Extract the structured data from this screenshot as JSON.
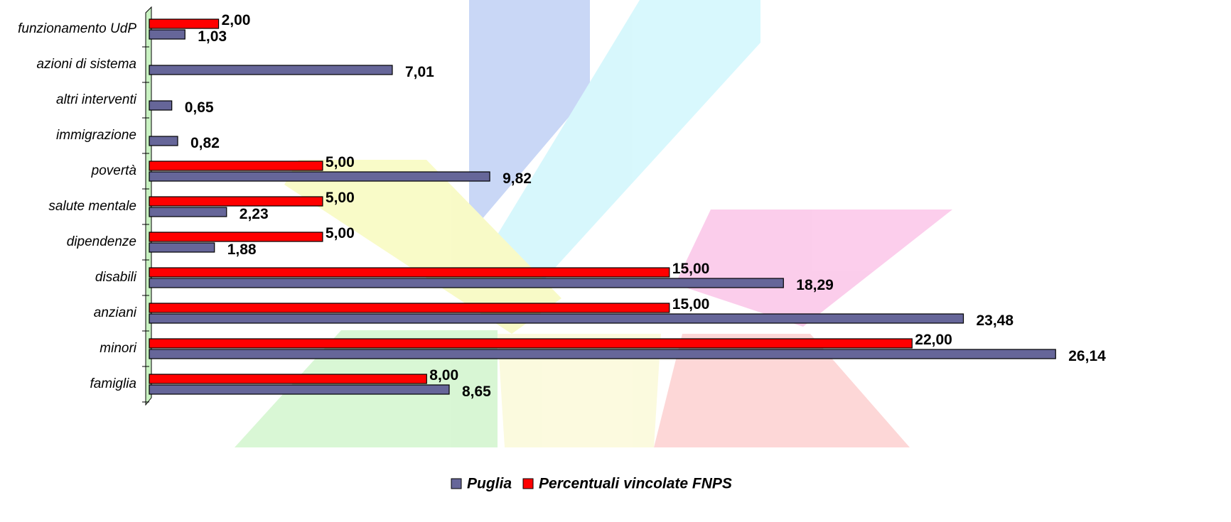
{
  "chart_data": {
    "type": "bar",
    "orientation": "horizontal",
    "categories": [
      "funzionamento UdP",
      "azioni di sistema",
      "altri interventi",
      "immigrazione",
      "povertà",
      "salute mentale",
      "dipendenze",
      "disabili",
      "anziani",
      "minori",
      "famiglia"
    ],
    "series": [
      {
        "name": "Puglia",
        "color": "#666699",
        "values": [
          1.03,
          7.01,
          0.65,
          0.82,
          9.82,
          2.23,
          1.88,
          18.29,
          23.48,
          26.14,
          8.65
        ],
        "value_labels": [
          "1,03",
          "7,01",
          "0,65",
          "0,82",
          "9,82",
          "2,23",
          "1,88",
          "18,29",
          "23,48",
          "26,14",
          "8,65"
        ]
      },
      {
        "name": "Percentuali vincolate FNPS",
        "color": "#ff0000",
        "values": [
          2.0,
          null,
          null,
          null,
          5.0,
          5.0,
          5.0,
          15.0,
          15.0,
          22.0,
          8.0
        ],
        "value_labels": [
          "2,00",
          null,
          null,
          null,
          "5,00",
          "5,00",
          "5,00",
          "15,00",
          "15,00",
          "22,00",
          "8,00"
        ]
      }
    ],
    "xlim": [
      0,
      28
    ],
    "legend": "bottom"
  }
}
